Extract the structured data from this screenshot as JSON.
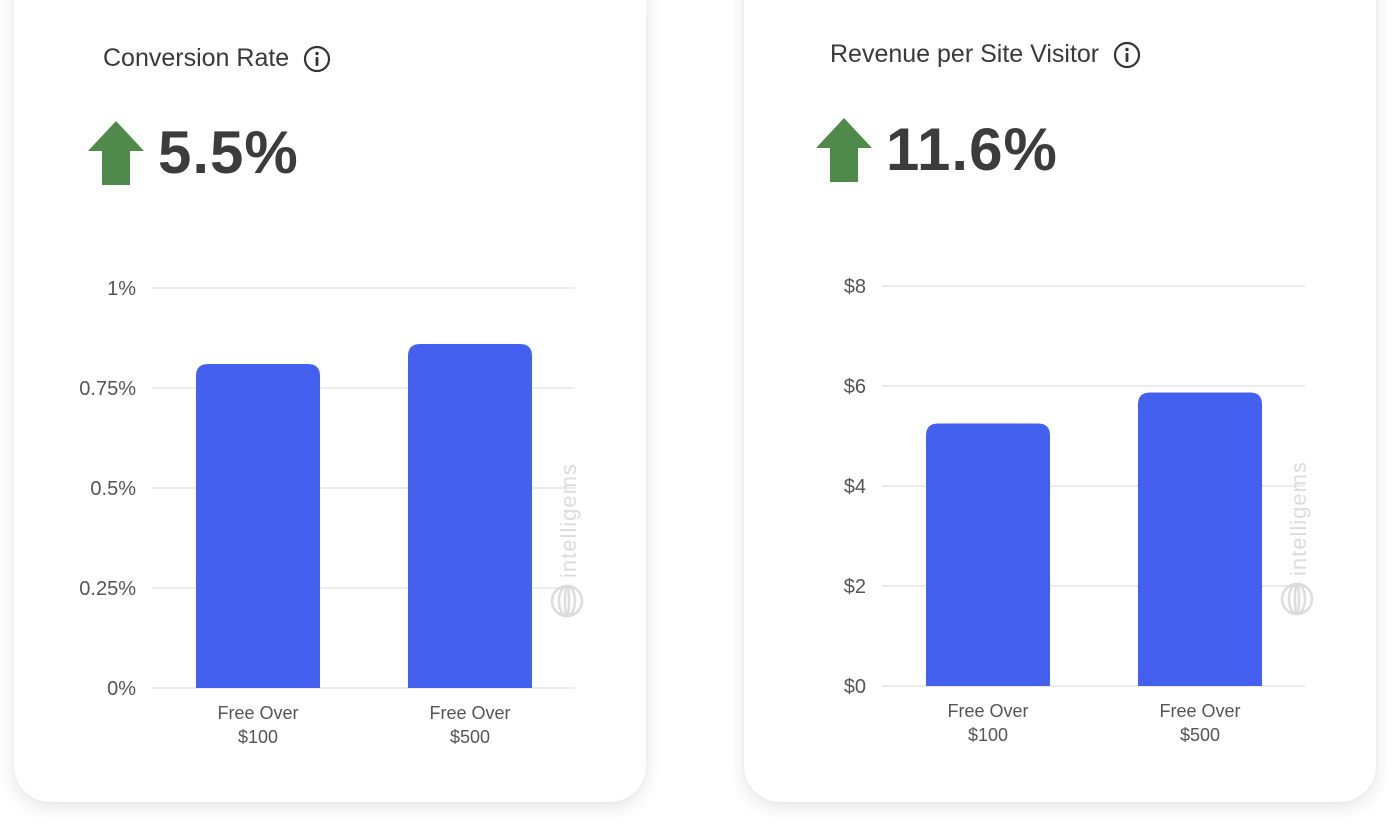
{
  "cards": [
    {
      "title": "Conversion Rate",
      "change_value": "5.5%",
      "change_direction": "up",
      "icons": {
        "info": "info-icon",
        "trend": "up-arrow-icon"
      }
    },
    {
      "title": "Revenue per Site Visitor",
      "change_value": "11.6%",
      "change_direction": "up",
      "icons": {
        "info": "info-icon",
        "trend": "up-arrow-icon"
      }
    }
  ],
  "watermark": "intelligems",
  "colors": {
    "bar": "#4361ee",
    "arrow": "#4f8a4b",
    "grid": "#e6e6e6"
  },
  "chart_data": [
    {
      "type": "bar",
      "categories": [
        [
          "Free Over",
          "$100"
        ],
        [
          "Free Over",
          "$500"
        ]
      ],
      "values": [
        0.81,
        0.86
      ],
      "ylim": [
        0,
        1
      ],
      "yticks": [
        0,
        0.25,
        0.5,
        0.75,
        1
      ],
      "ytick_labels": [
        "0%",
        "0.25%",
        "0.5%",
        "0.75%",
        "1%"
      ],
      "grid": true,
      "xlabel": "",
      "ylabel": ""
    },
    {
      "type": "bar",
      "categories": [
        [
          "Free Over",
          "$100"
        ],
        [
          "Free Over",
          "$500"
        ]
      ],
      "values": [
        5.25,
        5.87
      ],
      "ylim": [
        0,
        8
      ],
      "yticks": [
        0,
        2,
        4,
        6,
        8
      ],
      "ytick_labels": [
        "$0",
        "$2",
        "$4",
        "$6",
        "$8"
      ],
      "grid": true,
      "xlabel": "",
      "ylabel": ""
    }
  ]
}
